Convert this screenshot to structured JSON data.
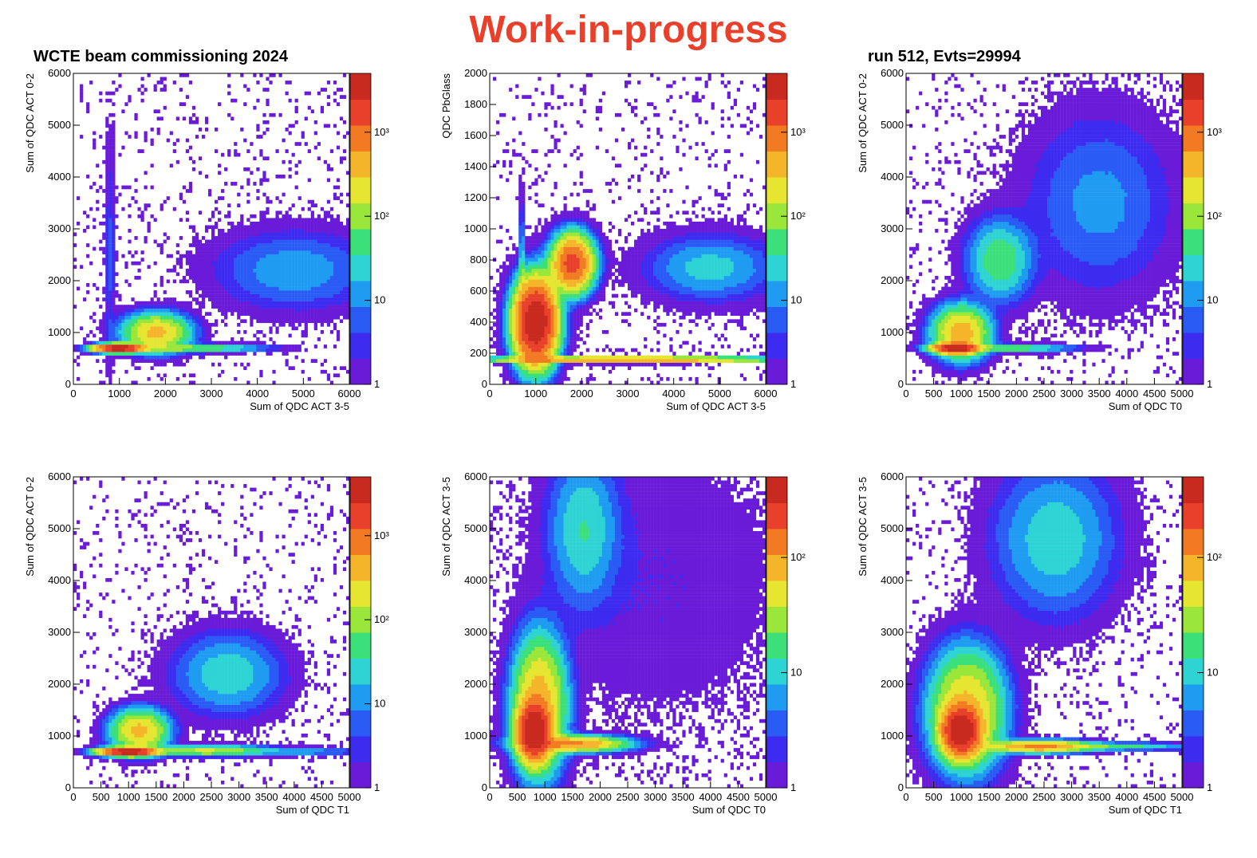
{
  "header": {
    "banner": "Work-in-progress",
    "title_left": "WCTE beam commissioning 2024",
    "title_right": "run 512, Evts=29994"
  },
  "colors": {
    "banner": "#e8402a",
    "palette": [
      "#6a1bd8",
      "#3d2bf0",
      "#2a5cf5",
      "#1f9cf2",
      "#2ed3d3",
      "#3be07a",
      "#9be63a",
      "#e6e632",
      "#f5b52a",
      "#f27a22",
      "#e8402a",
      "#c92a20"
    ]
  },
  "chart_data": [
    {
      "type": "heatmap",
      "xlabel": "Sum of QDC ACT 3-5",
      "ylabel": "Sum of QDC ACT 0-2",
      "xlim": [
        0,
        6000
      ],
      "ylim": [
        0,
        6000
      ],
      "xticks": [
        "0",
        "1000",
        "2000",
        "3000",
        "4000",
        "5000",
        "6000"
      ],
      "yticks": [
        "0",
        "1000",
        "2000",
        "3000",
        "4000",
        "5000",
        "6000"
      ],
      "zscale": "log",
      "zticks": [
        "1",
        "10",
        "10²",
        "10³"
      ],
      "clusters": [
        {
          "x": 1000,
          "y": 700,
          "sx": 250,
          "sy": 40,
          "weight": 1000
        },
        {
          "x": 1800,
          "y": 1000,
          "sx": 350,
          "sy": 180,
          "weight": 120
        },
        {
          "x": 2500,
          "y": 700,
          "sx": 800,
          "sy": 40,
          "weight": 40
        },
        {
          "x": 4800,
          "y": 2200,
          "sx": 900,
          "sy": 400,
          "weight": 8
        },
        {
          "x": 800,
          "y": 2500,
          "sx": 60,
          "sy": 1200,
          "weight": 3
        }
      ]
    },
    {
      "type": "heatmap",
      "xlabel": "Sum of QDC ACT 3-5",
      "ylabel": "QDC PbGlass",
      "xlim": [
        0,
        6000
      ],
      "ylim": [
        0,
        2000
      ],
      "xticks": [
        "0",
        "1000",
        "2000",
        "3000",
        "4000",
        "5000",
        "6000"
      ],
      "yticks": [
        "0",
        "200",
        "400",
        "600",
        "800",
        "1000",
        "1200",
        "1400",
        "1600",
        "1800",
        "2000"
      ],
      "zscale": "log",
      "zticks": [
        "1",
        "10",
        "10²",
        "10³"
      ],
      "clusters": [
        {
          "x": 1000,
          "y": 400,
          "sx": 250,
          "sy": 150,
          "weight": 150
        },
        {
          "x": 1800,
          "y": 780,
          "sx": 250,
          "sy": 100,
          "weight": 80
        },
        {
          "x": 3000,
          "y": 160,
          "sx": 1800,
          "sy": 10,
          "weight": 60
        },
        {
          "x": 4800,
          "y": 750,
          "sx": 800,
          "sy": 120,
          "weight": 6
        },
        {
          "x": 700,
          "y": 600,
          "sx": 30,
          "sy": 300,
          "weight": 10
        }
      ]
    },
    {
      "type": "heatmap",
      "xlabel": "Sum of QDC T0",
      "ylabel": "Sum of QDC ACT 0-2",
      "xlim": [
        0,
        5000
      ],
      "ylim": [
        0,
        6000
      ],
      "xticks": [
        "0",
        "500",
        "1000",
        "1500",
        "2000",
        "2500",
        "3000",
        "3500",
        "4000",
        "4500",
        "5000"
      ],
      "yticks": [
        "0",
        "1000",
        "2000",
        "3000",
        "4000",
        "5000",
        "6000"
      ],
      "zscale": "log",
      "zticks": [
        "1",
        "10",
        "10²",
        "10³"
      ],
      "clusters": [
        {
          "x": 900,
          "y": 700,
          "sx": 200,
          "sy": 50,
          "weight": 800
        },
        {
          "x": 1000,
          "y": 1000,
          "sx": 250,
          "sy": 250,
          "weight": 120
        },
        {
          "x": 1800,
          "y": 700,
          "sx": 600,
          "sy": 40,
          "weight": 30
        },
        {
          "x": 1700,
          "y": 2400,
          "sx": 300,
          "sy": 400,
          "weight": 25
        },
        {
          "x": 3500,
          "y": 3500,
          "sx": 700,
          "sy": 900,
          "weight": 6
        }
      ]
    },
    {
      "type": "heatmap",
      "xlabel": "Sum of QDC T1",
      "ylabel": "Sum of QDC ACT 0-2",
      "xlim": [
        0,
        5000
      ],
      "ylim": [
        0,
        6000
      ],
      "xticks": [
        "0",
        "500",
        "1000",
        "1500",
        "2000",
        "2500",
        "3000",
        "3500",
        "4000",
        "4500",
        "5000"
      ],
      "yticks": [
        "0",
        "1000",
        "2000",
        "3000",
        "4000",
        "5000",
        "6000"
      ],
      "zscale": "log",
      "zticks": [
        "1",
        "10",
        "10²",
        "10³"
      ],
      "clusters": [
        {
          "x": 1000,
          "y": 700,
          "sx": 250,
          "sy": 40,
          "weight": 1000
        },
        {
          "x": 1200,
          "y": 1100,
          "sx": 250,
          "sy": 200,
          "weight": 120
        },
        {
          "x": 2400,
          "y": 720,
          "sx": 600,
          "sy": 50,
          "weight": 60
        },
        {
          "x": 2800,
          "y": 2200,
          "sx": 500,
          "sy": 400,
          "weight": 15
        },
        {
          "x": 4200,
          "y": 700,
          "sx": 600,
          "sy": 40,
          "weight": 8
        }
      ]
    },
    {
      "type": "heatmap",
      "xlabel": "Sum of QDC T0",
      "ylabel": "Sum of QDC ACT 3-5",
      "xlim": [
        0,
        5000
      ],
      "ylim": [
        0,
        6000
      ],
      "xticks": [
        "0",
        "500",
        "1000",
        "1500",
        "2000",
        "2500",
        "3000",
        "3500",
        "4000",
        "4500",
        "5000"
      ],
      "yticks": [
        "0",
        "1000",
        "2000",
        "3000",
        "4000",
        "5000",
        "6000"
      ],
      "zscale": "log",
      "zticks": [
        "1",
        "10",
        "10²"
      ],
      "clusters": [
        {
          "x": 800,
          "y": 1100,
          "sx": 150,
          "sy": 300,
          "weight": 300
        },
        {
          "x": 900,
          "y": 1600,
          "sx": 250,
          "sy": 700,
          "weight": 60
        },
        {
          "x": 1500,
          "y": 850,
          "sx": 500,
          "sy": 80,
          "weight": 80
        },
        {
          "x": 1700,
          "y": 5000,
          "sx": 350,
          "sy": 800,
          "weight": 10
        },
        {
          "x": 3000,
          "y": 4000,
          "sx": 1300,
          "sy": 1500,
          "weight": 1
        }
      ]
    },
    {
      "type": "heatmap",
      "xlabel": "Sum of QDC T1",
      "ylabel": "Sum of QDC ACT 3-5",
      "xlim": [
        0,
        5000
      ],
      "ylim": [
        0,
        6000
      ],
      "xticks": [
        "0",
        "500",
        "1000",
        "1500",
        "2000",
        "2500",
        "3000",
        "3500",
        "4000",
        "4500",
        "5000"
      ],
      "yticks": [
        "0",
        "1000",
        "2000",
        "3000",
        "4000",
        "5000",
        "6000"
      ],
      "zscale": "log",
      "zticks": [
        "1",
        "10",
        "10²"
      ],
      "clusters": [
        {
          "x": 1000,
          "y": 1100,
          "sx": 180,
          "sy": 250,
          "weight": 400
        },
        {
          "x": 1100,
          "y": 1500,
          "sx": 350,
          "sy": 600,
          "weight": 60
        },
        {
          "x": 2400,
          "y": 800,
          "sx": 500,
          "sy": 60,
          "weight": 100
        },
        {
          "x": 3700,
          "y": 800,
          "sx": 800,
          "sy": 40,
          "weight": 15
        },
        {
          "x": 2700,
          "y": 4800,
          "sx": 600,
          "sy": 800,
          "weight": 10
        }
      ]
    }
  ]
}
